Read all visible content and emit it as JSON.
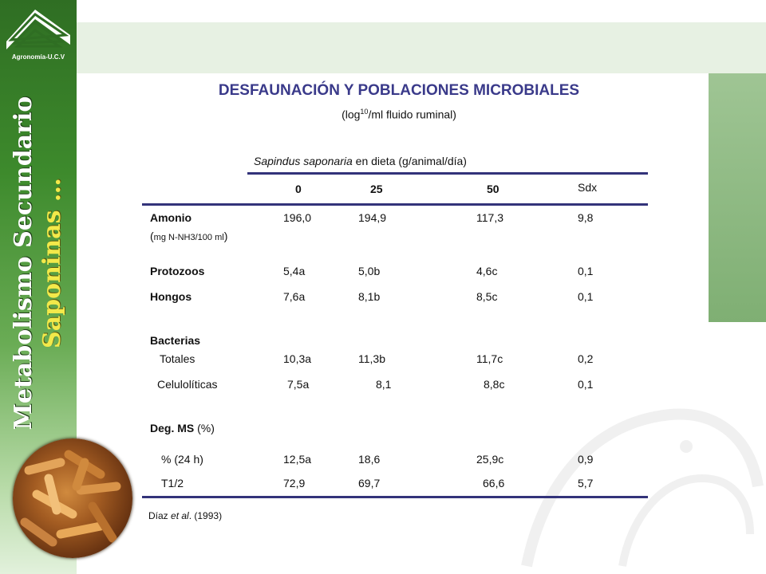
{
  "logo_text": "Agronomía-U.C.V",
  "vertical_title": {
    "line1": "Metabolismo Secundario",
    "line2": "Saponinas …"
  },
  "title": "DESFAUNACIÓN Y POBLACIONES MICROBIALES",
  "subtitle": {
    "pre": "(log",
    "sup": "10",
    "post": "/ml fluido ruminal)"
  },
  "table_caption": {
    "italic": "Sapindus saponaria",
    "rest": " en dieta (g/animal/día)"
  },
  "columns": [
    "0",
    "25",
    "50",
    "Sdx"
  ],
  "rows": {
    "amonio": {
      "label": "Amonio",
      "values": [
        "196,0",
        "194,9",
        "117,3",
        "9,8"
      ],
      "unit_pre": "(",
      "unit": "mg N-NH3/100 ml",
      "unit_post": ")"
    },
    "protozoos": {
      "label": "Protozoos",
      "values": [
        "5,4a",
        "5,0b",
        "4,6c",
        "0,1"
      ]
    },
    "hongos": {
      "label": "Hongos",
      "values": [
        "7,6a",
        "8,1b",
        "8,5c",
        "0,1"
      ]
    },
    "bacterias": {
      "label": "Bacterias"
    },
    "totales": {
      "label": "Totales",
      "values": [
        "10,3a",
        "11,3b",
        "11,7c",
        "0,2"
      ]
    },
    "celuloliticas": {
      "label": "Celulolíticas",
      "values": [
        "7,5a",
        "8,1",
        "8,8c",
        "0,1"
      ]
    },
    "degms": {
      "label": "Deg. MS",
      "suffix": " (%)"
    },
    "p24": {
      "label": "% (24 h)",
      "values": [
        "12,5a",
        "18,6",
        "25,9c",
        "0,9"
      ]
    },
    "t12": {
      "label": "T1/2",
      "values": [
        "72,9",
        "69,7",
        "66,6",
        "5,7"
      ]
    }
  },
  "citation": {
    "author": "Díaz ",
    "etal": "et al",
    "rest": ". (1993)"
  },
  "colors": {
    "title": "#3a3a8a",
    "rule": "#33337a",
    "sidebar": "#3d8a2c",
    "accent_text": "#f3e94a"
  }
}
